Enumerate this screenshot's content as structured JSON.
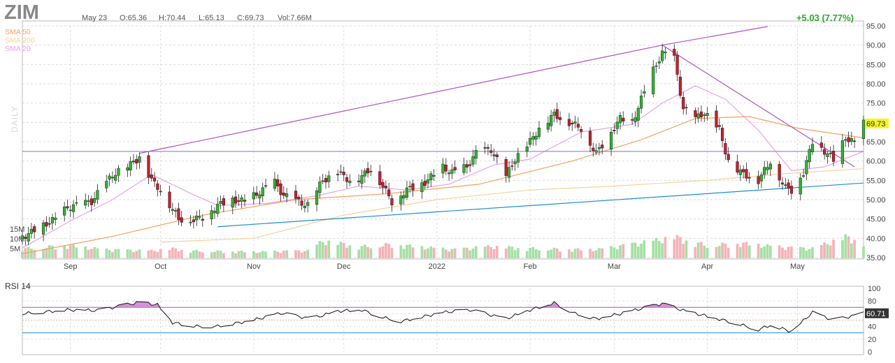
{
  "header": {
    "ticker": "ZIM",
    "date": "May 23",
    "open": "O:65.36",
    "high": "H:70.44",
    "low": "L:65.13",
    "close": "C:69.73",
    "volume": "Vol:7.66M",
    "change": "+5.03 (7.77%)"
  },
  "legend": [
    {
      "label": "SMA 50",
      "color": "#f5a15a"
    },
    {
      "label": "SMA 200",
      "color": "#f5d29a"
    },
    {
      "label": "SMA 20",
      "color": "#e9a2e4"
    }
  ],
  "side_label": "DAILY",
  "rsi_title": "RSI 14",
  "colors": {
    "up": "#2fb52f",
    "down": "#c81d2e",
    "vol_up": "#a5e0a5",
    "vol_down": "#f4b3b7",
    "resistance_line": "#b04fc8",
    "support_line": "#1b8fd2",
    "horizontal_line": "#7777cc",
    "last_price_bg": "#f4f42a"
  },
  "chart_data": [
    {
      "type": "candlestick",
      "title": "ZIM",
      "ylim": [
        35,
        95
      ],
      "y_ticks": [
        "95.00",
        "90.00",
        "85.00",
        "80.00",
        "75.00",
        "70.00",
        "65.00",
        "60.00",
        "55.00",
        "50.00",
        "45.00",
        "40.00",
        "35.00"
      ],
      "x_tick_labels": [
        "Sep",
        "Oct",
        "Nov",
        "Dec",
        "2022",
        "Feb",
        "Mar",
        "Apr",
        "May"
      ],
      "last_price_label": "69.73",
      "volume_ticks": [
        "15M",
        "10M",
        "5M"
      ],
      "x_range": [
        "2021-08-16",
        "2022-05-23"
      ],
      "closes": [
        [
          "2021-08-16",
          40.5
        ],
        [
          "2021-08-19",
          41.5
        ],
        [
          "2021-08-24",
          43.8
        ],
        [
          "2021-08-27",
          45.0
        ],
        [
          "2021-08-31",
          48.0
        ],
        [
          "2021-09-03",
          48.5
        ],
        [
          "2021-09-08",
          49.5
        ],
        [
          "2021-09-13",
          54.5
        ],
        [
          "2021-09-16",
          57.0
        ],
        [
          "2021-09-21",
          59.0
        ],
        [
          "2021-09-24",
          61.0
        ],
        [
          "2021-09-28",
          55.0
        ],
        [
          "2021-10-01",
          52.5
        ],
        [
          "2021-10-05",
          47.5
        ],
        [
          "2021-10-07",
          45.0
        ],
        [
          "2021-10-12",
          44.8
        ],
        [
          "2021-10-15",
          45.5
        ],
        [
          "2021-10-20",
          48.5
        ],
        [
          "2021-10-25",
          50.0
        ],
        [
          "2021-10-29",
          49.5
        ],
        [
          "2021-11-03",
          52.0
        ],
        [
          "2021-11-08",
          54.5
        ],
        [
          "2021-11-11",
          51.0
        ],
        [
          "2021-11-16",
          49.5
        ],
        [
          "2021-11-19",
          48.5
        ],
        [
          "2021-11-24",
          55.0
        ],
        [
          "2021-11-29",
          57.0
        ],
        [
          "2021-12-03",
          55.0
        ],
        [
          "2021-12-07",
          56.0
        ],
        [
          "2021-12-10",
          58.0
        ],
        [
          "2021-12-14",
          53.5
        ],
        [
          "2021-12-17",
          49.5
        ],
        [
          "2021-12-22",
          52.5
        ],
        [
          "2021-12-28",
          54.5
        ],
        [
          "2022-01-03",
          58.5
        ],
        [
          "2022-01-06",
          57.0
        ],
        [
          "2022-01-11",
          58.5
        ],
        [
          "2022-01-14",
          62.0
        ],
        [
          "2022-01-19",
          63.0
        ],
        [
          "2022-01-24",
          56.0
        ],
        [
          "2022-01-27",
          60.5
        ],
        [
          "2022-02-01",
          65.0
        ],
        [
          "2022-02-04",
          68.5
        ],
        [
          "2022-02-09",
          72.0
        ],
        [
          "2022-02-14",
          70.0
        ],
        [
          "2022-02-18",
          68.5
        ],
        [
          "2022-02-23",
          62.0
        ],
        [
          "2022-02-28",
          67.5
        ],
        [
          "2022-03-03",
          71.0
        ],
        [
          "2022-03-07",
          70.0
        ],
        [
          "2022-03-10",
          76.0
        ],
        [
          "2022-03-14",
          83.5
        ],
        [
          "2022-03-17",
          88.0
        ],
        [
          "2022-03-21",
          86.5
        ],
        [
          "2022-03-24",
          73.5
        ],
        [
          "2022-03-28",
          71.0
        ],
        [
          "2022-03-31",
          72.5
        ],
        [
          "2022-04-05",
          68.0
        ],
        [
          "2022-04-08",
          60.0
        ],
        [
          "2022-04-12",
          57.0
        ],
        [
          "2022-04-18",
          55.0
        ],
        [
          "2022-04-22",
          60.0
        ],
        [
          "2022-04-27",
          53.0
        ],
        [
          "2022-04-29",
          52.5
        ],
        [
          "2022-05-03",
          57.0
        ],
        [
          "2022-05-06",
          65.0
        ],
        [
          "2022-05-11",
          62.0
        ],
        [
          "2022-05-13",
          60.0
        ],
        [
          "2022-05-17",
          66.0
        ],
        [
          "2022-05-20",
          64.7
        ],
        [
          "2022-05-23",
          69.73
        ]
      ],
      "volume_millions": [
        [
          "2021-08-16",
          4.5
        ],
        [
          "2021-08-31",
          6.0
        ],
        [
          "2021-09-13",
          4.0
        ],
        [
          "2021-09-28",
          3.5
        ],
        [
          "2021-10-05",
          4.5
        ],
        [
          "2021-10-12",
          3.5
        ],
        [
          "2021-11-03",
          3.0
        ],
        [
          "2021-11-19",
          3.5
        ],
        [
          "2021-11-24",
          8.0
        ],
        [
          "2021-12-07",
          5.5
        ],
        [
          "2021-12-17",
          6.5
        ],
        [
          "2022-01-06",
          4.0
        ],
        [
          "2022-01-19",
          5.5
        ],
        [
          "2022-02-04",
          4.5
        ],
        [
          "2022-02-23",
          4.0
        ],
        [
          "2022-03-14",
          8.0
        ],
        [
          "2022-03-21",
          10.0
        ],
        [
          "2022-04-01",
          6.0
        ],
        [
          "2022-04-12",
          7.0
        ],
        [
          "2022-04-27",
          5.0
        ],
        [
          "2022-05-06",
          4.5
        ],
        [
          "2022-05-17",
          10.0
        ],
        [
          "2022-05-23",
          7.66
        ]
      ],
      "sma20": [
        [
          "2021-08-16",
          37.5
        ],
        [
          "2021-09-01",
          44.5
        ],
        [
          "2021-09-15",
          50.0
        ],
        [
          "2021-09-28",
          56.5
        ],
        [
          "2021-10-10",
          52.0
        ],
        [
          "2021-10-20",
          48.5
        ],
        [
          "2021-11-05",
          49.0
        ],
        [
          "2021-11-22",
          51.0
        ],
        [
          "2021-12-06",
          53.5
        ],
        [
          "2021-12-22",
          52.5
        ],
        [
          "2022-01-05",
          54.0
        ],
        [
          "2022-01-20",
          59.0
        ],
        [
          "2022-02-01",
          60.5
        ],
        [
          "2022-02-18",
          67.5
        ],
        [
          "2022-03-07",
          69.5
        ],
        [
          "2022-03-17",
          75.0
        ],
        [
          "2022-03-28",
          79.5
        ],
        [
          "2022-04-07",
          76.0
        ],
        [
          "2022-04-18",
          68.0
        ],
        [
          "2022-04-29",
          57.5
        ],
        [
          "2022-05-10",
          58.5
        ],
        [
          "2022-05-23",
          62.5
        ]
      ],
      "sma50": [
        [
          "2021-08-16",
          36.0
        ],
        [
          "2021-09-15",
          40.5
        ],
        [
          "2021-10-15",
          46.0
        ],
        [
          "2021-11-15",
          50.0
        ],
        [
          "2021-12-15",
          51.5
        ],
        [
          "2022-01-15",
          54.0
        ],
        [
          "2022-02-15",
          60.0
        ],
        [
          "2022-03-10",
          65.5
        ],
        [
          "2022-03-28",
          71.0
        ],
        [
          "2022-04-15",
          71.5
        ],
        [
          "2022-05-01",
          68.5
        ],
        [
          "2022-05-23",
          66.0
        ]
      ],
      "sma200": [
        [
          "2021-10-01",
          39.0
        ],
        [
          "2021-11-01",
          40.0
        ],
        [
          "2021-12-01",
          46.0
        ],
        [
          "2022-01-01",
          50.0
        ],
        [
          "2022-02-01",
          52.5
        ],
        [
          "2022-03-01",
          53.5
        ],
        [
          "2022-04-01",
          55.0
        ],
        [
          "2022-05-01",
          57.0
        ],
        [
          "2022-05-23",
          58.0
        ]
      ],
      "trendlines": [
        {
          "role": "resistance",
          "from": [
            "2021-09-24",
            62.0
          ],
          "to": [
            "2022-03-17",
            90.0
          ]
        },
        {
          "role": "resistance",
          "from": [
            "2022-03-17",
            90.0
          ],
          "to": [
            "2022-05-20",
            58.5
          ]
        },
        {
          "role": "support",
          "from": [
            "2021-10-20",
            43.0
          ],
          "to": [
            "2022-05-23",
            54.3
          ]
        },
        {
          "role": "horizontal",
          "y": 62.5
        }
      ],
      "grid": true
    },
    {
      "type": "line",
      "title": "RSI 14",
      "ylim": [
        0,
        100
      ],
      "y_ticks": [
        "100",
        "80",
        "60",
        "40",
        "20",
        "0"
      ],
      "last_value_label": "60.71",
      "overbought": 70,
      "oversold": 30,
      "values": [
        [
          "2021-08-16",
          60
        ],
        [
          "2021-08-31",
          66
        ],
        [
          "2021-09-10",
          65
        ],
        [
          "2021-09-24",
          78
        ],
        [
          "2021-09-30",
          74
        ],
        [
          "2021-10-05",
          46
        ],
        [
          "2021-10-12",
          40
        ],
        [
          "2021-10-20",
          40
        ],
        [
          "2021-11-01",
          50
        ],
        [
          "2021-11-10",
          61
        ],
        [
          "2021-11-20",
          52
        ],
        [
          "2021-11-29",
          64
        ],
        [
          "2021-12-07",
          66
        ],
        [
          "2021-12-14",
          54
        ],
        [
          "2021-12-20",
          48
        ],
        [
          "2022-01-03",
          62
        ],
        [
          "2022-01-12",
          66
        ],
        [
          "2022-01-24",
          52
        ],
        [
          "2022-02-01",
          66
        ],
        [
          "2022-02-09",
          77
        ],
        [
          "2022-02-16",
          60
        ],
        [
          "2022-02-23",
          52
        ],
        [
          "2022-03-03",
          60
        ],
        [
          "2022-03-17",
          76
        ],
        [
          "2022-03-24",
          65
        ],
        [
          "2022-04-01",
          56
        ],
        [
          "2022-04-08",
          48
        ],
        [
          "2022-04-18",
          35
        ],
        [
          "2022-04-22",
          42
        ],
        [
          "2022-04-29",
          32
        ],
        [
          "2022-05-06",
          62
        ],
        [
          "2022-05-13",
          50
        ],
        [
          "2022-05-20",
          57
        ],
        [
          "2022-05-23",
          60.71
        ]
      ]
    }
  ]
}
